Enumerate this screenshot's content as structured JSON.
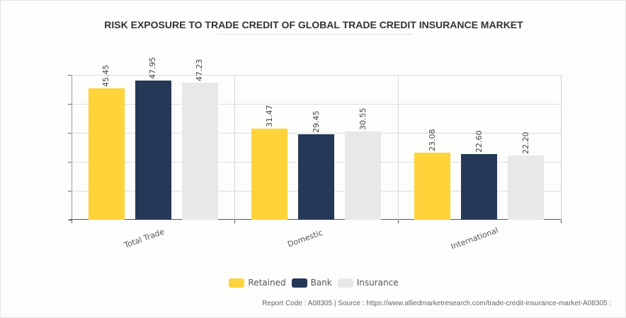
{
  "title": "RISK EXPOSURE TO TRADE CREDIT OF GLOBAL TRADE CREDIT INSURANCE MARKET",
  "footer": "Report Code : A08305  |  Source : https://www.alliedmarketresearch.com/trade-credit-insurance-market-A08305 :",
  "legend": [
    {
      "label": "Retained",
      "color": "#FFD33A"
    },
    {
      "label": "Bank",
      "color": "#253858"
    },
    {
      "label": "Insurance",
      "color": "#E8E8E8"
    }
  ],
  "chart_data": {
    "type": "bar",
    "title": "RISK EXPOSURE TO TRADE CREDIT OF GLOBAL TRADE CREDIT INSURANCE MARKET",
    "categories": [
      "Total Trade",
      "Domestic",
      "International"
    ],
    "series": [
      {
        "name": "Retained",
        "color": "#FFD33A",
        "values": [
          45.45,
          31.47,
          23.08
        ],
        "labels": [
          "45.45",
          "31.47",
          "23.08"
        ]
      },
      {
        "name": "Bank",
        "color": "#253858",
        "values": [
          47.95,
          29.45,
          22.6
        ],
        "labels": [
          "47.95",
          "29.45",
          "22.60"
        ]
      },
      {
        "name": "Insurance",
        "color": "#E8E8E8",
        "values": [
          47.23,
          30.55,
          22.2
        ],
        "labels": [
          "47.23",
          "30.55",
          "22.20"
        ]
      }
    ],
    "xlabel": "",
    "ylabel": "",
    "ylim": [
      0,
      50
    ],
    "yticks": [
      0,
      10,
      20,
      30,
      40,
      50
    ],
    "ytick_labels_visible": false,
    "grid": true,
    "legend_position": "bottom"
  }
}
